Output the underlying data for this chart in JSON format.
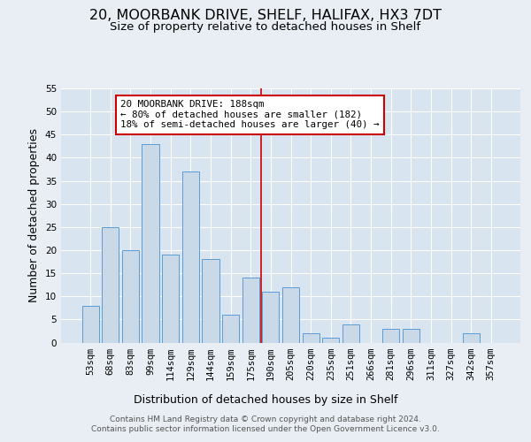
{
  "title": "20, MOORBANK DRIVE, SHELF, HALIFAX, HX3 7DT",
  "subtitle": "Size of property relative to detached houses in Shelf",
  "xlabel": "Distribution of detached houses by size in Shelf",
  "ylabel": "Number of detached properties",
  "categories": [
    "53sqm",
    "68sqm",
    "83sqm",
    "99sqm",
    "114sqm",
    "129sqm",
    "144sqm",
    "159sqm",
    "175sqm",
    "190sqm",
    "205sqm",
    "220sqm",
    "235sqm",
    "251sqm",
    "266sqm",
    "281sqm",
    "296sqm",
    "311sqm",
    "327sqm",
    "342sqm",
    "357sqm"
  ],
  "values": [
    8,
    25,
    20,
    43,
    19,
    37,
    18,
    6,
    14,
    11,
    12,
    2,
    1,
    4,
    0,
    3,
    3,
    0,
    0,
    2,
    0
  ],
  "bar_color": "#c9d9e8",
  "bar_edge_color": "#5b9bd5",
  "vline_idx": 8.5,
  "vline_color": "#cc0000",
  "annotation_box_text": "20 MOORBANK DRIVE: 188sqm\n← 80% of detached houses are smaller (182)\n18% of semi-detached houses are larger (40) →",
  "annotation_box_color": "#cc0000",
  "ylim": [
    0,
    55
  ],
  "yticks": [
    0,
    5,
    10,
    15,
    20,
    25,
    30,
    35,
    40,
    45,
    50,
    55
  ],
  "footer_line1": "Contains HM Land Registry data © Crown copyright and database right 2024.",
  "footer_line2": "Contains public sector information licensed under the Open Government Licence v3.0.",
  "bg_color": "#e8eef4",
  "plot_bg_color": "#d8e4ef",
  "grid_color": "#ffffff",
  "title_fontsize": 11.5,
  "subtitle_fontsize": 9.5,
  "axis_label_fontsize": 9,
  "tick_fontsize": 7.5,
  "footer_fontsize": 6.5,
  "ann_fontsize": 7.8
}
